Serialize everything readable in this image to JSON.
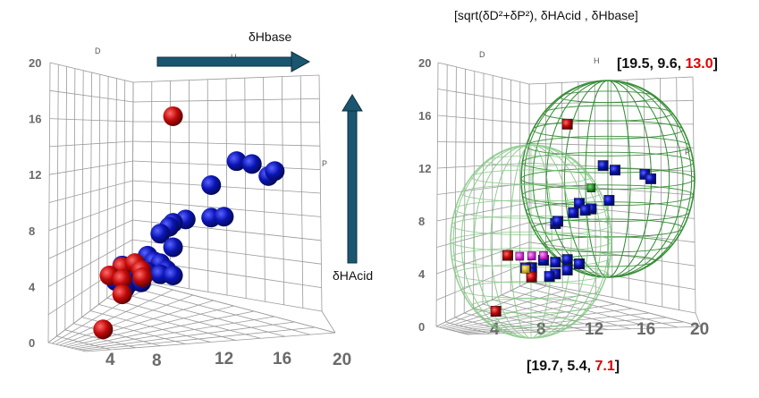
{
  "header_formula": "[sqrt(δD²+δP²), δHAcid , δHbase]",
  "annotations": {
    "hbase_arrow_label": "δHbase",
    "hacid_arrow_label": "δHAcid",
    "upper_vector": {
      "a": "19.5",
      "b": "9.6",
      "c": "13.0"
    },
    "lower_vector": {
      "a": "19.7",
      "b": "5.4",
      "c": "7.1"
    }
  },
  "colors": {
    "blue": "#0a14b4",
    "red": "#c20a0a",
    "arrow": "#1b5670",
    "sphere_dark": "#2f8a2f",
    "sphere_light": "#7fc47f",
    "grid": "#9a9a9a"
  },
  "chart_data": [
    {
      "type": "scatter",
      "title": "",
      "axis_letters": [
        "D",
        "H",
        "P"
      ],
      "x_ticks": [
        "4",
        "8",
        "12",
        "16",
        "20"
      ],
      "y_ticks": [
        "0",
        "4",
        "8",
        "12",
        "16",
        "20"
      ],
      "ylim": [
        0,
        20
      ],
      "series": [
        {
          "color": "blue",
          "points": [
            [
              14,
              12.6
            ],
            [
              15.2,
              12.3
            ],
            [
              16.5,
              11.2
            ],
            [
              17,
              11.6
            ],
            [
              12,
              10.7
            ],
            [
              10,
              8
            ],
            [
              12,
              8
            ],
            [
              13,
              8
            ],
            [
              9,
              7.8
            ],
            [
              8.7,
              7.5
            ],
            [
              8,
              7
            ],
            [
              9,
              5.8
            ],
            [
              7,
              5.3
            ],
            [
              5,
              4.7
            ],
            [
              6.3,
              4
            ],
            [
              7.5,
              4.8
            ],
            [
              8,
              4.6
            ],
            [
              8.5,
              4
            ],
            [
              7,
              4
            ],
            [
              5.5,
              4
            ],
            [
              4.5,
              3.8
            ],
            [
              5.5,
              3.2
            ],
            [
              6.5,
              3.2
            ],
            [
              8,
              3.7
            ],
            [
              9,
              3.5
            ],
            [
              4.5,
              3.5
            ],
            [
              5.2,
              2.8
            ]
          ]
        },
        {
          "color": "red",
          "points": [
            [
              9,
              16.5
            ],
            [
              5,
              4.6
            ],
            [
              6,
              4.8
            ],
            [
              6.5,
              4.2
            ],
            [
              4,
              4
            ],
            [
              5,
              3.6
            ],
            [
              6.6,
              3.6
            ],
            [
              5,
              2.4
            ],
            [
              3.5,
              -0.2
            ]
          ]
        }
      ]
    },
    {
      "type": "scatter",
      "title": "",
      "axis_letters": [
        "D",
        "H",
        "P"
      ],
      "x_ticks": [
        "4",
        "8",
        "12",
        "16",
        "20"
      ],
      "y_ticks": [
        "0",
        "4",
        "8",
        "12",
        "16",
        "20"
      ],
      "ylim": [
        0,
        20
      ],
      "sphere_centers": [
        {
          "values": [
            19.5,
            9.6,
            13.0
          ]
        },
        {
          "values": [
            19.7,
            5.4,
            7.1
          ]
        }
      ],
      "series": [
        {
          "color": "blue",
          "points": [
            [
              13,
              12.2
            ],
            [
              14,
              11.8
            ],
            [
              16.5,
              11.4
            ],
            [
              17,
              11
            ],
            [
              11,
              9
            ],
            [
              12,
              8.5
            ],
            [
              10.5,
              8.2
            ],
            [
              11.5,
              8.4
            ],
            [
              13.5,
              9.2
            ],
            [
              9,
              7.3
            ],
            [
              9.2,
              7.5
            ],
            [
              8,
              4.2
            ],
            [
              9,
              4
            ],
            [
              10,
              4.2
            ],
            [
              7,
              3.6
            ],
            [
              9,
              3
            ],
            [
              10,
              3.3
            ],
            [
              11,
              3.8
            ],
            [
              8.5,
              2.8
            ],
            [
              7,
              3.2
            ],
            [
              6.5,
              3.6
            ]
          ]
        },
        {
          "color": "red",
          "points": [
            [
              10,
              15.8
            ],
            [
              5,
              4.7
            ],
            [
              7,
              2.8
            ],
            [
              4,
              0
            ]
          ]
        },
        {
          "color": "magenta",
          "points": [
            [
              6,
              4.6
            ],
            [
              7,
              4.6
            ],
            [
              8,
              4.6
            ]
          ]
        },
        {
          "color": "green",
          "points": [
            [
              12,
              10.3
            ]
          ]
        },
        {
          "color": "yellow",
          "points": [
            [
              6.5,
              3.5
            ]
          ]
        }
      ]
    }
  ]
}
